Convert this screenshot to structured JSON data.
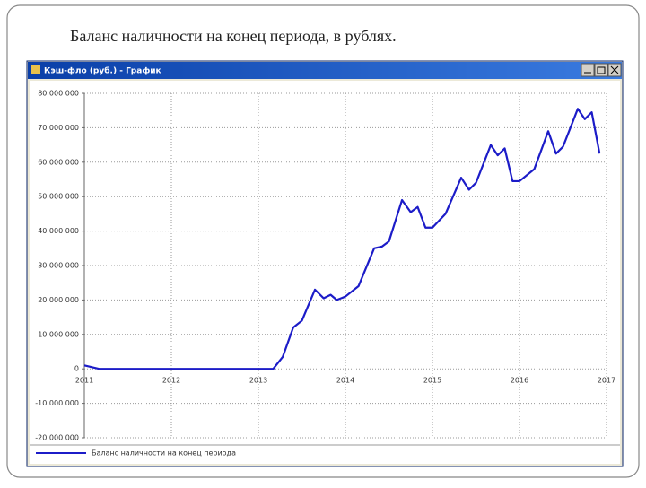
{
  "slide": {
    "title": "Баланс наличности на конец периода, в рублях."
  },
  "window": {
    "title": "Кэш-фло (руб.) - График"
  },
  "chart_data": {
    "type": "line",
    "x": [
      2011.0,
      2011.17,
      2013.17,
      2013.28,
      2013.4,
      2013.5,
      2013.65,
      2013.75,
      2013.83,
      2013.9,
      2014.0,
      2014.15,
      2014.33,
      2014.42,
      2014.5,
      2014.65,
      2014.75,
      2014.83,
      2014.92,
      2015.0,
      2015.15,
      2015.33,
      2015.42,
      2015.5,
      2015.67,
      2015.75,
      2015.83,
      2015.92,
      2016.0,
      2016.17,
      2016.33,
      2016.42,
      2016.5,
      2016.67,
      2016.75,
      2016.83,
      2016.92
    ],
    "series": [
      {
        "name": "Баланс наличности на конец периода",
        "color": "#1c1cc8",
        "values": [
          1000000,
          0,
          0,
          3500000,
          12000000,
          14000000,
          23000000,
          20500000,
          21500000,
          20000000,
          21000000,
          24000000,
          35000000,
          35500000,
          37000000,
          49000000,
          45500000,
          47000000,
          41000000,
          41000000,
          45000000,
          55500000,
          52000000,
          54000000,
          65000000,
          62000000,
          64000000,
          54500000,
          54500000,
          58000000,
          69000000,
          62500000,
          64500000,
          75500000,
          72500000,
          74500000,
          62500000
        ]
      }
    ],
    "xlim": [
      2011,
      2017
    ],
    "xticks": [
      2011,
      2012,
      2013,
      2014,
      2015,
      2016,
      2017
    ],
    "ylim": [
      -20000000,
      80000000
    ],
    "yticks": [
      {
        "value": -20000000,
        "label": "-20 000 000"
      },
      {
        "value": -10000000,
        "label": "-10 000 000"
      },
      0,
      {
        "value": 10000000,
        "label": "10 000 000"
      },
      {
        "value": 20000000,
        "label": "20 000 000"
      },
      {
        "value": 30000000,
        "label": "30 000 000"
      },
      {
        "value": 40000000,
        "label": "40 000 000"
      },
      {
        "value": 50000000,
        "label": "50 000 000"
      },
      {
        "value": 60000000,
        "label": "60 000 000"
      },
      {
        "value": 70000000,
        "label": "70 000 000"
      },
      {
        "value": 80000000,
        "label": "80 000 000"
      }
    ],
    "grid": true
  }
}
